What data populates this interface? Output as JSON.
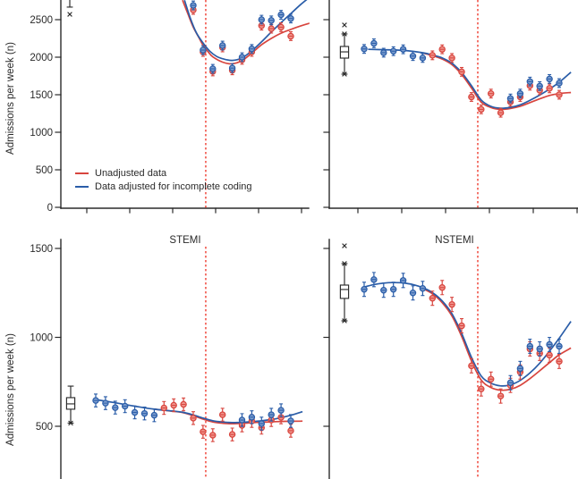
{
  "chart_data": {
    "type": "scatter",
    "x_unit": "week",
    "n_weeks": 21,
    "ylabel": "Admissions per week (n)",
    "legend": [
      {
        "label": "Unadjusted data",
        "color": "#d8453e"
      },
      {
        "label": "Data adjusted for incomplete coding",
        "color": "#2a5da8"
      }
    ],
    "colors": {
      "unadjusted": "#d8453e",
      "unadjusted_fill": "#f0968e",
      "adjusted": "#2a5da8",
      "adjusted_fill": "#7e9ecf",
      "event_line": "#ee3c30",
      "axis": "#2a2a2a",
      "background": "#ffffff"
    },
    "panels": [
      {
        "position": "top-left",
        "title": "",
        "ci_halfwidth": 58,
        "event_line_week": 12.28,
        "y_axis": {
          "ticks": [
            {
              "v": 0,
              "label": "0"
            },
            {
              "v": 500,
              "label": "500"
            },
            {
              "v": 1000,
              "label": "1000"
            },
            {
              "v": 1500,
              "label": "1500"
            },
            {
              "v": 2000,
              "label": "2000"
            },
            {
              "v": 2500,
              "label": "2500"
            }
          ]
        },
        "boxplot": {
          "cut_above": true,
          "whisker_bottom": 2667,
          "outliers_below": [
            2571
          ],
          "x_on_caps": "none"
        },
        "series": {
          "adjusted": [
            null,
            null,
            null,
            null,
            null,
            null,
            null,
            null,
            null,
            null,
            2690,
            2095,
            1845,
            2155,
            1855,
            2000,
            2110,
            2500,
            2490,
            2565,
            2515
          ],
          "unadjusted": [
            null,
            null,
            null,
            null,
            null,
            null,
            null,
            null,
            null,
            null,
            2630,
            2070,
            1810,
            2130,
            1825,
            1965,
            2070,
            2420,
            2380,
            2400,
            2280
          ]
        },
        "fit_adjusted": [
          [
            10.1,
            2760
          ],
          [
            10.7,
            2520
          ],
          [
            11.3,
            2330
          ],
          [
            12,
            2190
          ],
          [
            12.7,
            2080
          ],
          [
            13.4,
            2010
          ],
          [
            14,
            1980
          ],
          [
            15,
            1957
          ],
          [
            16,
            1990
          ],
          [
            17,
            2085
          ],
          [
            18,
            2205
          ],
          [
            19,
            2335
          ],
          [
            20,
            2460
          ],
          [
            21,
            2580
          ],
          [
            22,
            2700
          ],
          [
            22.7,
            2775
          ]
        ],
        "fit_unadjusted": [
          [
            9.9,
            2760
          ],
          [
            10.5,
            2560
          ],
          [
            11,
            2400
          ],
          [
            11.5,
            2280
          ],
          [
            12,
            2160
          ],
          [
            12.5,
            2075
          ],
          [
            13,
            2005
          ],
          [
            14,
            1935
          ],
          [
            15,
            1912
          ],
          [
            16,
            1955
          ],
          [
            17,
            2055
          ],
          [
            18,
            2165
          ],
          [
            19,
            2250
          ],
          [
            20,
            2320
          ],
          [
            21,
            2370
          ],
          [
            22,
            2415
          ],
          [
            23,
            2455
          ]
        ]
      },
      {
        "position": "top-right",
        "title": "",
        "ci_halfwidth": 58,
        "event_line_week": 12.65,
        "y_axis": {
          "ticks": [
            {
              "v": 0,
              "label": ""
            },
            {
              "v": 500,
              "label": ""
            },
            {
              "v": 1000,
              "label": ""
            },
            {
              "v": 1500,
              "label": ""
            },
            {
              "v": 2000,
              "label": ""
            },
            {
              "v": 2500,
              "label": ""
            }
          ]
        },
        "boxplot": {
          "outliers_above": [
            2429
          ],
          "whisker_top": 2310,
          "box_top": 2143,
          "median": 2071,
          "box_bottom": 1988,
          "whisker_bottom": 1774,
          "x_on_caps": "both"
        },
        "series": {
          "adjusted": [
            2110,
            2185,
            2060,
            2080,
            2105,
            2015,
            1990,
            null,
            null,
            null,
            null,
            null,
            null,
            null,
            null,
            1450,
            1515,
            1675,
            1615,
            1710,
            1655
          ],
          "unadjusted": [
            null,
            null,
            null,
            null,
            null,
            null,
            null,
            2025,
            2105,
            1990,
            1805,
            1470,
            1305,
            1515,
            1260,
            1405,
            1470,
            1620,
            1560,
            1585,
            1500
          ]
        },
        "fit_adjusted": [
          [
            1.4,
            2105
          ],
          [
            3,
            2100
          ],
          [
            5,
            2090
          ],
          [
            7,
            2060
          ],
          [
            8,
            2030
          ],
          [
            9,
            1990
          ],
          [
            10,
            1920
          ],
          [
            11,
            1795
          ],
          [
            12,
            1620
          ],
          [
            13,
            1430
          ],
          [
            14,
            1345
          ],
          [
            15,
            1320
          ],
          [
            16,
            1332
          ],
          [
            17,
            1365
          ],
          [
            18,
            1425
          ],
          [
            19,
            1495
          ],
          [
            20,
            1575
          ],
          [
            21,
            1665
          ],
          [
            22.2,
            1800
          ]
        ],
        "fit_unadjusted": [
          [
            7,
            2055
          ],
          [
            8,
            2020
          ],
          [
            9,
            1975
          ],
          [
            10,
            1900
          ],
          [
            11,
            1770
          ],
          [
            12,
            1590
          ],
          [
            13,
            1400
          ],
          [
            14,
            1330
          ],
          [
            15,
            1305
          ],
          [
            16,
            1317
          ],
          [
            17,
            1347
          ],
          [
            18,
            1395
          ],
          [
            19,
            1445
          ],
          [
            20,
            1490
          ],
          [
            21,
            1515
          ],
          [
            22.2,
            1530
          ]
        ]
      },
      {
        "position": "bottom-left",
        "title": "STEMI",
        "ci_halfwidth": 36,
        "event_line_week": 12.28,
        "y_axis": {
          "ticks": [
            {
              "v": 500,
              "label": "500"
            },
            {
              "v": 1000,
              "label": "1000"
            },
            {
              "v": 1500,
              "label": "1500"
            }
          ]
        },
        "boxplot": {
          "whisker_top": 726,
          "box_top": 661,
          "median": 626,
          "box_bottom": 596,
          "whisker_bottom": 518,
          "x_on_caps": "bottom"
        },
        "series": {
          "adjusted": [
            645,
            630,
            605,
            613,
            578,
            572,
            562,
            null,
            null,
            null,
            null,
            null,
            null,
            null,
            null,
            535,
            551,
            515,
            565,
            590,
            530
          ],
          "unadjusted": [
            null,
            null,
            null,
            null,
            null,
            null,
            null,
            603,
            618,
            623,
            546,
            469,
            450,
            565,
            454,
            505,
            530,
            492,
            535,
            550,
            475
          ]
        },
        "fit_adjusted": [
          [
            1,
            650
          ],
          [
            3,
            632
          ],
          [
            5,
            613
          ],
          [
            7,
            596
          ],
          [
            9,
            585
          ],
          [
            10,
            578
          ],
          [
            11,
            564
          ],
          [
            12,
            546
          ],
          [
            13,
            531
          ],
          [
            14,
            524
          ],
          [
            15,
            521
          ],
          [
            16,
            522
          ],
          [
            17,
            526
          ],
          [
            18,
            531
          ],
          [
            19,
            538
          ],
          [
            20,
            548
          ],
          [
            21,
            562
          ],
          [
            22.2,
            582
          ]
        ],
        "fit_unadjusted": [
          [
            7,
            596
          ],
          [
            8,
            590
          ],
          [
            9,
            584
          ],
          [
            10,
            576
          ],
          [
            11,
            560
          ],
          [
            12,
            540
          ],
          [
            13,
            524
          ],
          [
            14,
            517
          ],
          [
            15,
            514
          ],
          [
            16,
            516
          ],
          [
            17,
            520
          ],
          [
            18,
            523
          ],
          [
            19,
            525
          ],
          [
            20,
            527
          ],
          [
            21,
            528
          ],
          [
            22.2,
            529
          ]
        ]
      },
      {
        "position": "bottom-right",
        "title": "NSTEMI",
        "ci_halfwidth": 40,
        "event_line_week": 12.65,
        "y_axis": {
          "ticks": [
            {
              "v": 500,
              "label": ""
            },
            {
              "v": 1000,
              "label": ""
            },
            {
              "v": 1500,
              "label": ""
            }
          ]
        },
        "boxplot": {
          "outliers_above": [
            1515
          ],
          "whisker_top": 1415,
          "box_top": 1294,
          "median": 1269,
          "box_bottom": 1219,
          "whisker_bottom": 1093,
          "x_on_caps": "both"
        },
        "series": {
          "adjusted": [
            1270,
            1325,
            1265,
            1270,
            1320,
            1250,
            1275,
            null,
            null,
            null,
            null,
            null,
            null,
            null,
            null,
            745,
            825,
            950,
            935,
            960,
            950
          ],
          "unadjusted": [
            null,
            null,
            null,
            null,
            null,
            null,
            null,
            1220,
            1280,
            1185,
            1065,
            840,
            710,
            765,
            670,
            730,
            805,
            935,
            910,
            900,
            865
          ]
        },
        "fit_adjusted": [
          [
            1,
            1283
          ],
          [
            2,
            1297
          ],
          [
            3,
            1305
          ],
          [
            4,
            1308
          ],
          [
            5,
            1306
          ],
          [
            6,
            1297
          ],
          [
            7,
            1280
          ],
          [
            8,
            1252
          ],
          [
            9,
            1205
          ],
          [
            10,
            1133
          ],
          [
            11,
            1022
          ],
          [
            12,
            888
          ],
          [
            13,
            783
          ],
          [
            14,
            742
          ],
          [
            15,
            727
          ],
          [
            16,
            733
          ],
          [
            17,
            758
          ],
          [
            18,
            800
          ],
          [
            19,
            855
          ],
          [
            20,
            922
          ],
          [
            21,
            995
          ],
          [
            22.2,
            1090
          ]
        ],
        "fit_unadjusted": [
          [
            7,
            1275
          ],
          [
            8,
            1245
          ],
          [
            9,
            1195
          ],
          [
            10,
            1120
          ],
          [
            11,
            1005
          ],
          [
            12,
            868
          ],
          [
            13,
            760
          ],
          [
            14,
            718
          ],
          [
            15,
            703
          ],
          [
            16,
            708
          ],
          [
            17,
            730
          ],
          [
            18,
            768
          ],
          [
            19,
            812
          ],
          [
            20,
            858
          ],
          [
            21,
            902
          ],
          [
            22.2,
            940
          ]
        ]
      }
    ]
  }
}
